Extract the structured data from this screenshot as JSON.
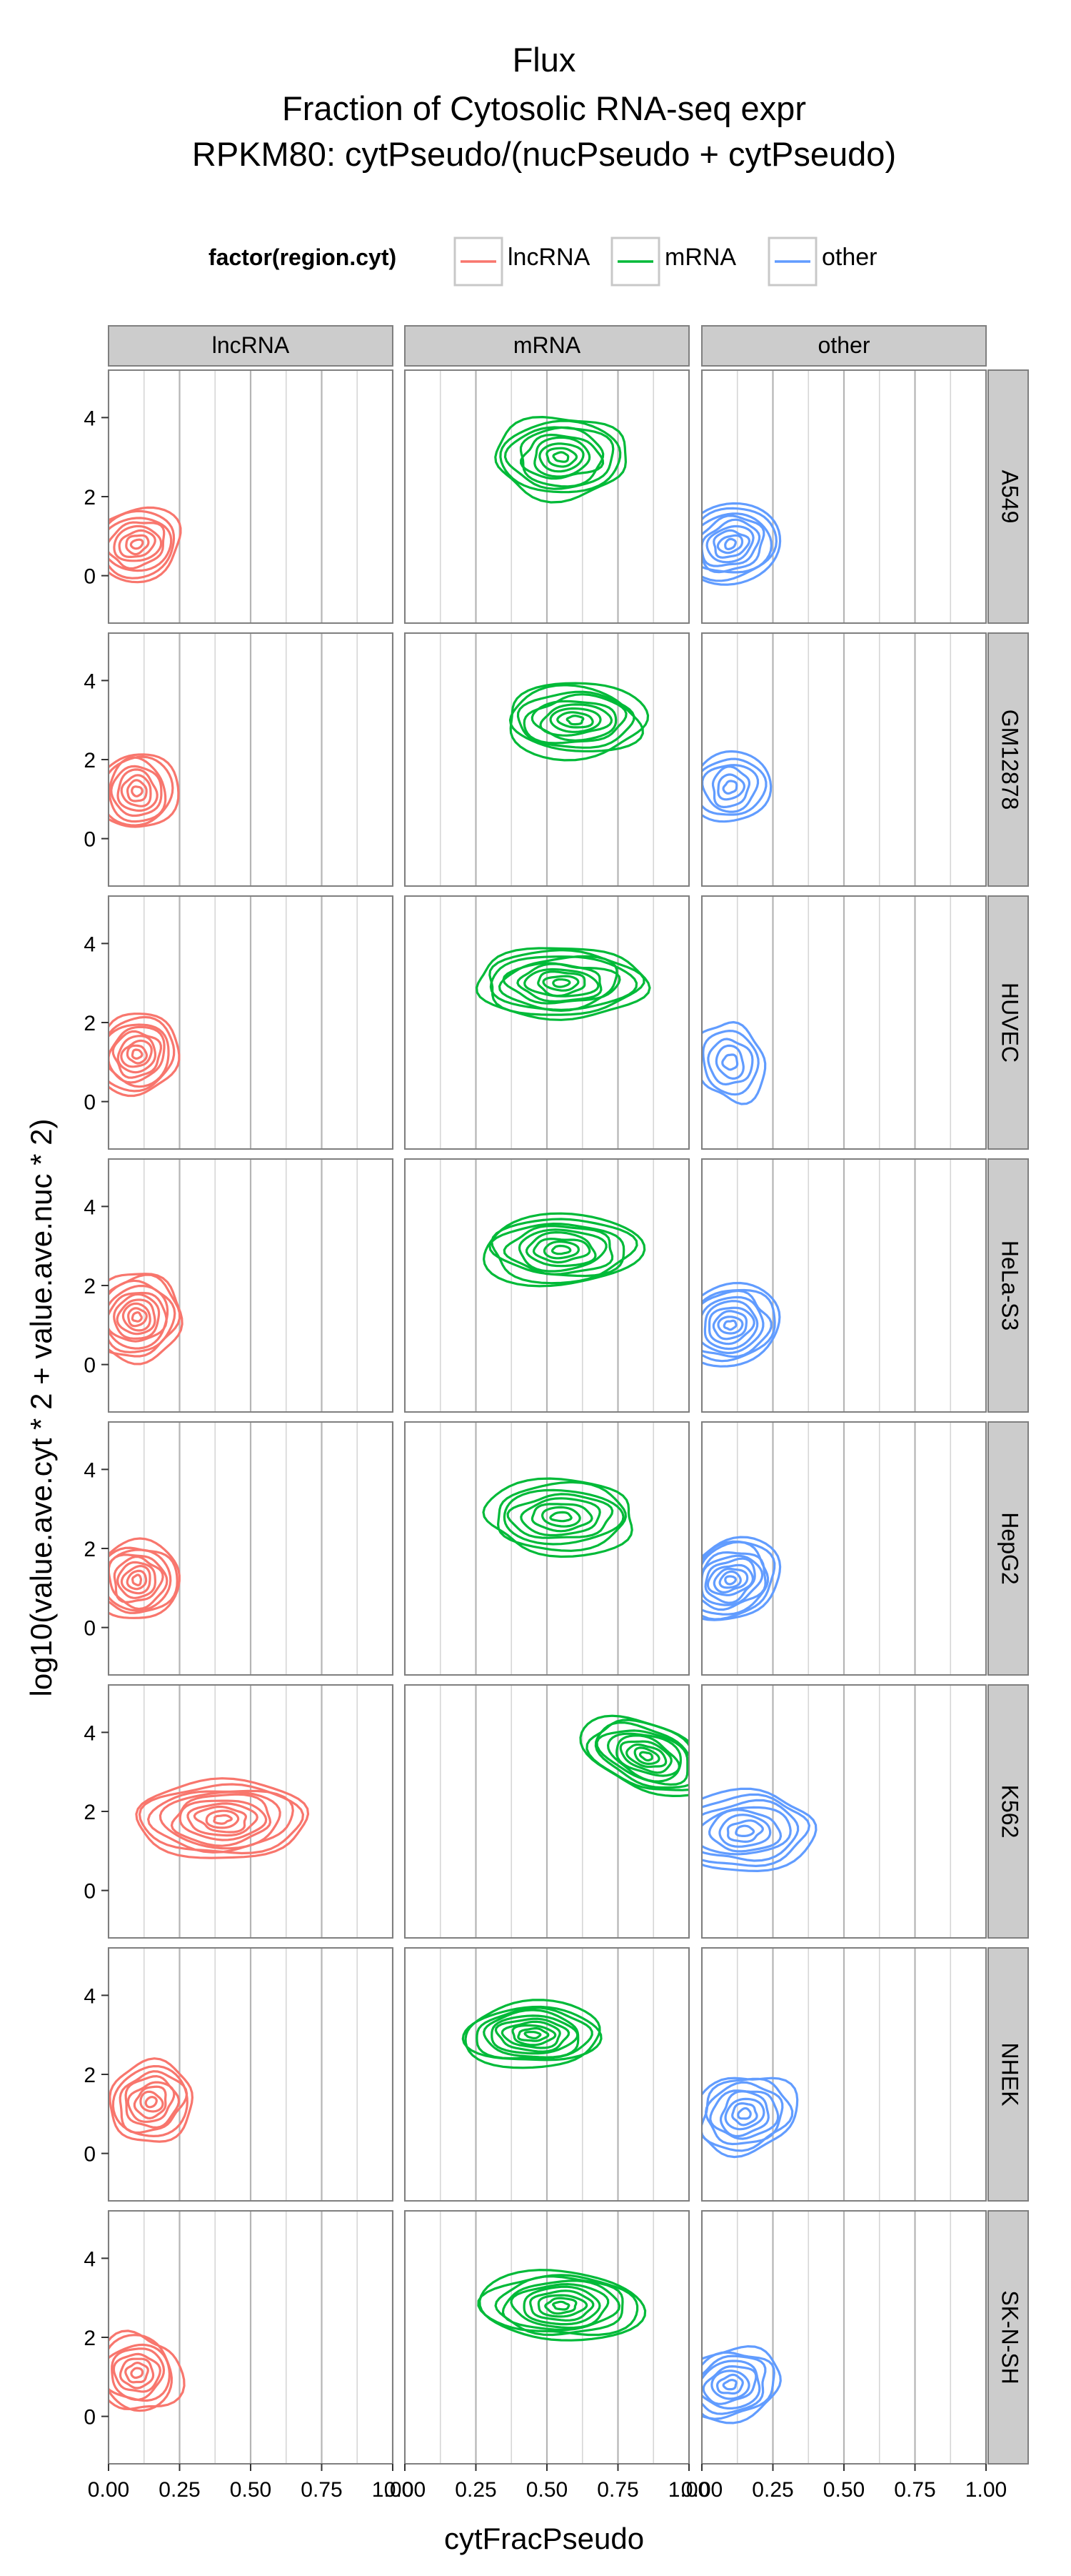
{
  "chart_data": {
    "type": "contour",
    "title_lines": [
      "Flux",
      "Fraction of Cytosolic RNA-seq expr",
      "RPKM80: cytPseudo/(nucPseudo + cytPseudo)"
    ],
    "xlabel": "cytFracPseudo",
    "ylabel": "log10(value.ave.cyt * 2 + value.ave.nuc * 2)",
    "xlim": [
      0,
      1
    ],
    "ylim": [
      -1.2,
      5.2
    ],
    "x_ticks": [
      "0.00",
      "0.25",
      "0.50",
      "0.75",
      "1.00"
    ],
    "y_ticks": [
      "0",
      "2",
      "4"
    ],
    "legend": {
      "title": "factor(region.cyt)",
      "position": "top",
      "entries": [
        "lncRNA",
        "mRNA",
        "other"
      ]
    },
    "colors": {
      "lncRNA": "#f8766d",
      "mRNA": "#00ba38",
      "other": "#619cff"
    },
    "grid": true,
    "facet_columns": [
      "lncRNA",
      "mRNA",
      "other"
    ],
    "facet_rows": [
      "A549",
      "GM12878",
      "HUVEC",
      "HeLa-S3",
      "HepG2",
      "K562",
      "NHEK",
      "SK-N-SH"
    ],
    "panels": [
      [
        {
          "peak": [
            0.1,
            0.8
          ],
          "sx": 0.16,
          "sy": 0.9,
          "rot": -20,
          "levels": 8
        },
        {
          "peak": [
            0.55,
            3.0
          ],
          "sx": 0.24,
          "sy": 1.0,
          "rot": 0,
          "levels": 9
        },
        {
          "peak": [
            0.1,
            0.8
          ],
          "sx": 0.18,
          "sy": 1.0,
          "rot": -15,
          "levels": 9
        }
      ],
      [
        {
          "peak": [
            0.1,
            1.2
          ],
          "sx": 0.14,
          "sy": 1.0,
          "rot": -20,
          "levels": 8
        },
        {
          "peak": [
            0.6,
            3.0
          ],
          "sx": 0.26,
          "sy": 0.9,
          "rot": 0,
          "levels": 9
        },
        {
          "peak": [
            0.1,
            1.3
          ],
          "sx": 0.14,
          "sy": 0.9,
          "rot": -15,
          "levels": 6
        }
      ],
      [
        {
          "peak": [
            0.1,
            1.2
          ],
          "sx": 0.15,
          "sy": 1.0,
          "rot": -20,
          "levels": 9
        },
        {
          "peak": [
            0.55,
            3.0
          ],
          "sx": 0.3,
          "sy": 0.9,
          "rot": 0,
          "levels": 10
        },
        {
          "peak": [
            0.1,
            1.0
          ],
          "sx": 0.12,
          "sy": 1.0,
          "rot": -15,
          "levels": 5
        }
      ],
      [
        {
          "peak": [
            0.1,
            1.2
          ],
          "sx": 0.16,
          "sy": 1.1,
          "rot": -20,
          "levels": 10
        },
        {
          "peak": [
            0.55,
            2.9
          ],
          "sx": 0.28,
          "sy": 0.9,
          "rot": 0,
          "levels": 9
        },
        {
          "peak": [
            0.1,
            1.0
          ],
          "sx": 0.18,
          "sy": 1.0,
          "rot": -15,
          "levels": 9
        }
      ],
      [
        {
          "peak": [
            0.1,
            1.2
          ],
          "sx": 0.15,
          "sy": 1.0,
          "rot": -20,
          "levels": 9
        },
        {
          "peak": [
            0.55,
            2.8
          ],
          "sx": 0.28,
          "sy": 0.9,
          "rot": 0,
          "levels": 8
        },
        {
          "peak": [
            0.1,
            1.2
          ],
          "sx": 0.18,
          "sy": 1.0,
          "rot": -15,
          "levels": 10
        }
      ],
      [
        {
          "peak": [
            0.4,
            1.8
          ],
          "sx": 0.3,
          "sy": 1.0,
          "rot": 0,
          "levels": 10
        },
        {
          "peak": [
            0.85,
            3.4
          ],
          "sx": 0.22,
          "sy": 0.9,
          "rot": 20,
          "levels": 10
        },
        {
          "peak": [
            0.15,
            1.5
          ],
          "sx": 0.25,
          "sy": 1.0,
          "rot": -5,
          "levels": 8
        }
      ],
      [
        {
          "peak": [
            0.15,
            1.3
          ],
          "sx": 0.15,
          "sy": 1.0,
          "rot": -20,
          "levels": 8
        },
        {
          "peak": [
            0.45,
            3.0
          ],
          "sx": 0.25,
          "sy": 0.8,
          "rot": 0,
          "levels": 10
        },
        {
          "peak": [
            0.15,
            1.0
          ],
          "sx": 0.18,
          "sy": 1.0,
          "rot": -15,
          "levels": 8
        }
      ],
      [
        {
          "peak": [
            0.1,
            1.1
          ],
          "sx": 0.15,
          "sy": 1.0,
          "rot": -20,
          "levels": 8
        },
        {
          "peak": [
            0.55,
            2.8
          ],
          "sx": 0.28,
          "sy": 0.9,
          "rot": 0,
          "levels": 10
        },
        {
          "peak": [
            0.1,
            0.8
          ],
          "sx": 0.18,
          "sy": 0.9,
          "rot": -15,
          "levels": 8
        }
      ]
    ]
  }
}
